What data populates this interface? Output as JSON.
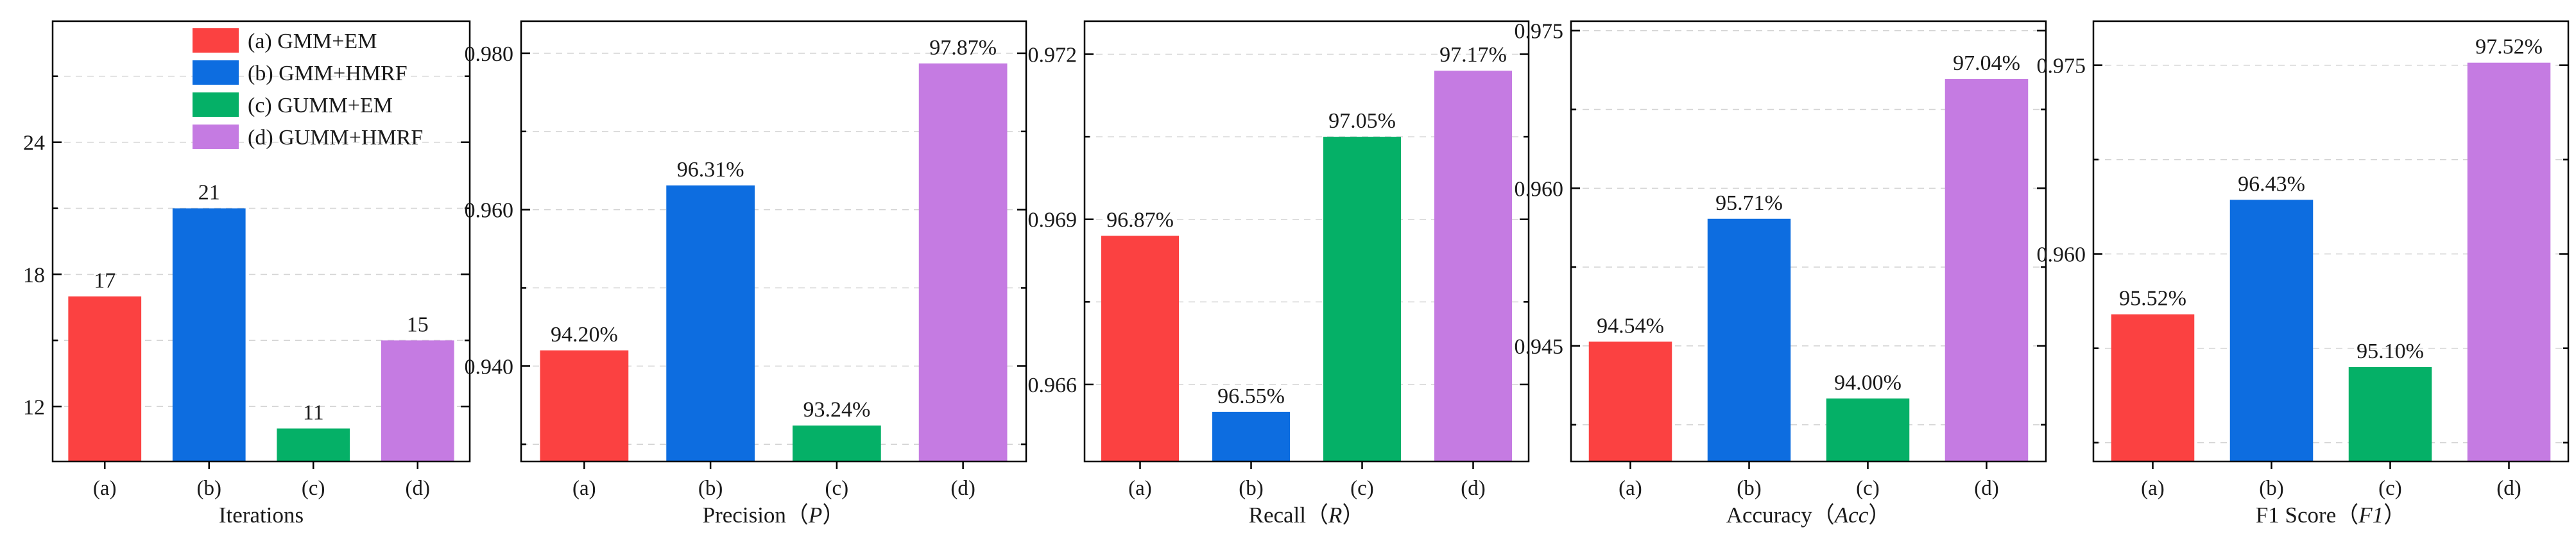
{
  "chart_data": [
    {
      "type": "bar",
      "categories": [
        "(a)",
        "(b)",
        "(c)",
        "(d)"
      ],
      "values": [
        17,
        21,
        11,
        15
      ],
      "value_labels": [
        "17",
        "21",
        "11",
        "15"
      ],
      "xlabel": "Iterations",
      "ylabel": "",
      "ylim": [
        9.5,
        29.5
      ],
      "yticks": [
        12,
        18,
        24
      ],
      "ytick_labels": [
        "12",
        "18",
        "24"
      ],
      "grid": true,
      "legend": "top-right",
      "legend_entries": [
        "(a) GMM+EM",
        "(b) GMM+HMRF",
        "(c) GUMM+EM",
        "(d) GUMM+HMRF"
      ]
    },
    {
      "type": "bar",
      "categories": [
        "(a)",
        "(b)",
        "(c)",
        "(d)"
      ],
      "values": [
        0.942,
        0.9631,
        0.9324,
        0.9787
      ],
      "value_labels": [
        "94.20%",
        "96.31%",
        "93.24%",
        "97.87%"
      ],
      "xlabel": "Precision（P）",
      "ylabel": "",
      "ylim": [
        0.9278,
        0.9841
      ],
      "yticks": [
        0.94,
        0.96,
        0.98
      ],
      "ytick_labels": [
        "0.940",
        "0.960",
        "0.980"
      ],
      "grid": true
    },
    {
      "type": "bar",
      "categories": [
        "(a)",
        "(b)",
        "(c)",
        "(d)"
      ],
      "values": [
        0.9687,
        0.9655,
        0.9705,
        0.9717
      ],
      "value_labels": [
        "96.87%",
        "96.55%",
        "97.05%",
        "97.17%"
      ],
      "xlabel": "Recall（R）",
      "ylabel": "",
      "ylim": [
        0.9646,
        0.9726
      ],
      "yticks": [
        0.966,
        0.969,
        0.972
      ],
      "ytick_labels": [
        "0.966",
        "0.969",
        "0.972"
      ],
      "grid": true
    },
    {
      "type": "bar",
      "categories": [
        "(a)",
        "(b)",
        "(c)",
        "(d)"
      ],
      "values": [
        0.9454,
        0.9571,
        0.94,
        0.9704
      ],
      "value_labels": [
        "94.54%",
        "95.71%",
        "94.00%",
        "97.04%"
      ],
      "xlabel": "Accuracy（Acc）",
      "ylabel": "",
      "ylim": [
        0.934,
        0.9759
      ],
      "yticks": [
        0.945,
        0.96,
        0.975
      ],
      "ytick_labels": [
        "0.945",
        "0.960",
        "0.975"
      ],
      "grid": true
    },
    {
      "type": "bar",
      "categories": [
        "(a)",
        "(b)",
        "(c)",
        "(d)"
      ],
      "values": [
        0.9552,
        0.9643,
        0.951,
        0.9752
      ],
      "value_labels": [
        "95.52%",
        "96.43%",
        "95.10%",
        "97.52%"
      ],
      "xlabel": "F1 Score（F1）",
      "ylabel": "",
      "ylim": [
        0.9435,
        0.9785
      ],
      "yticks": [
        0.96,
        0.975
      ],
      "ytick_labels": [
        "0.960",
        "0.975"
      ],
      "grid": true
    }
  ],
  "colors": {
    "a": "#fb4141",
    "b": "#0d6de0",
    "c": "#05b067",
    "d": "#c57be2"
  }
}
